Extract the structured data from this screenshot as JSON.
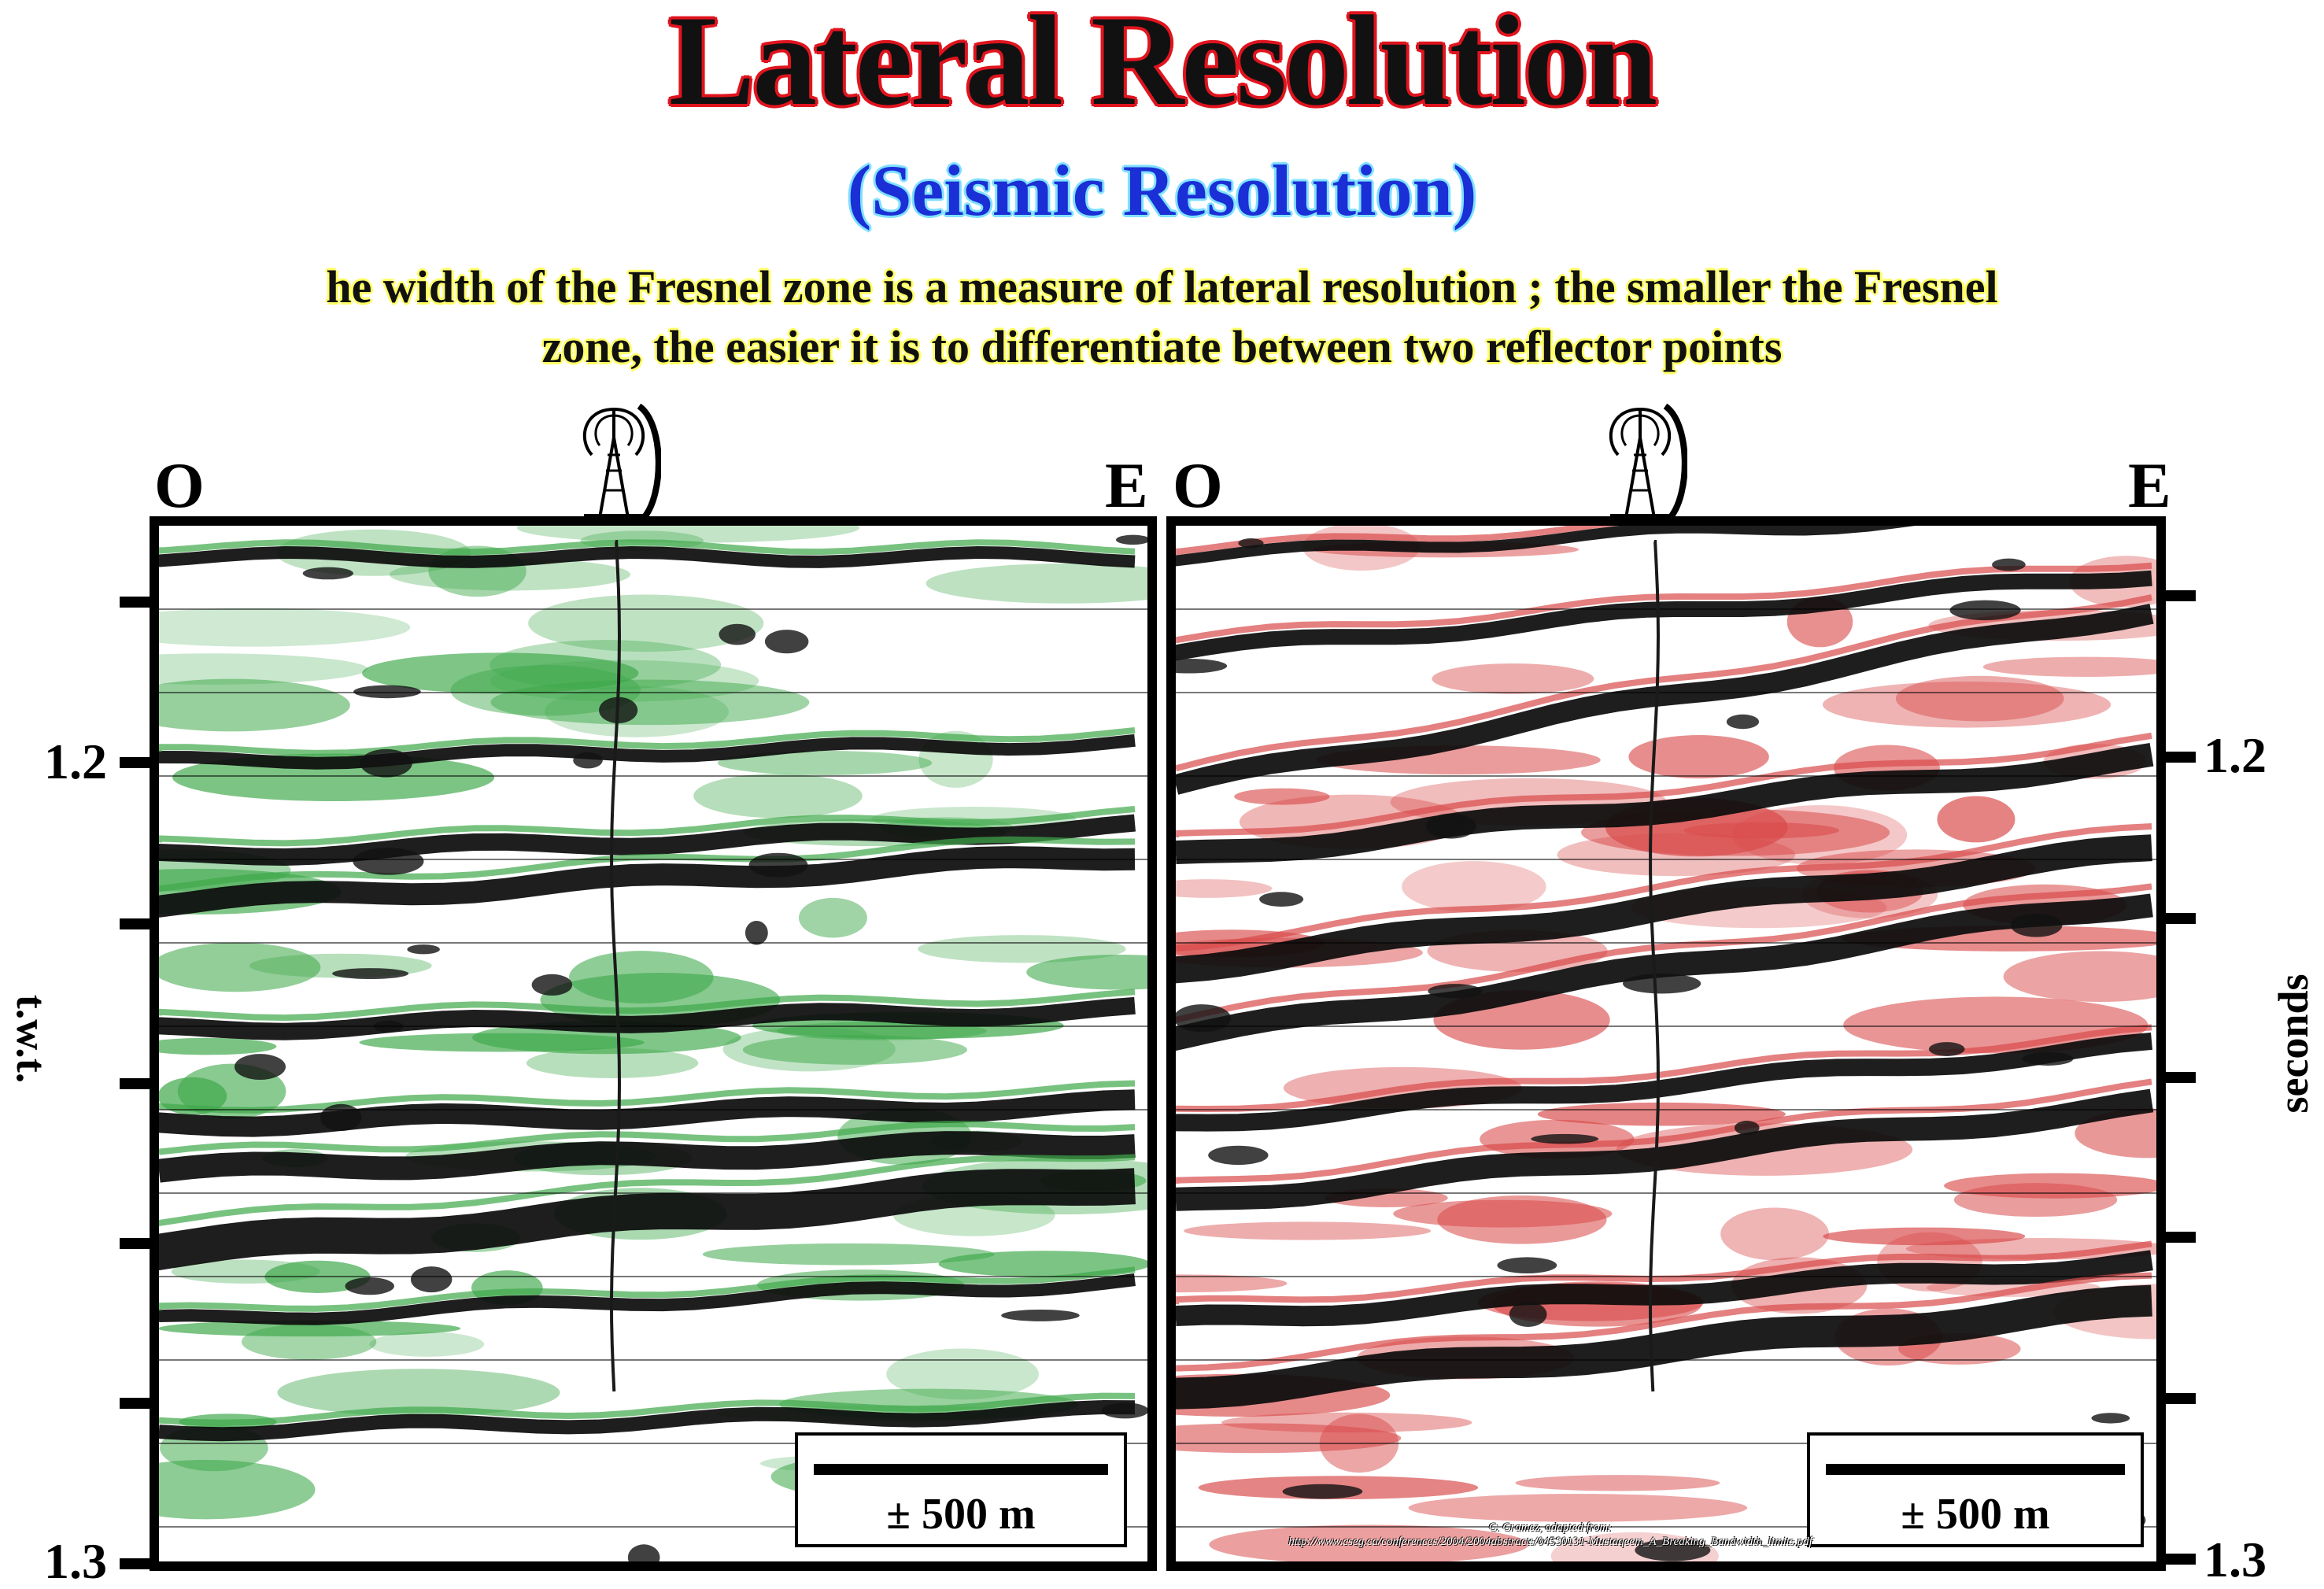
{
  "title": "Lateral Resolution",
  "subtitle": "(Seismic Resolution)",
  "description_line1": "he width of the Fresnel zone is a measure of lateral resolution ; the smaller the Fresnel",
  "description_line2": "zone, the easier it is to differentiate between two reflector points",
  "left_panel": {
    "west_label": "O",
    "east_label": "E",
    "axis_label": "t.w.t.",
    "tick_top": "1.2",
    "tick_bottom": "1.3",
    "scale_label": "± 500 m",
    "color": "#3ea84a"
  },
  "right_panel": {
    "west_label": "O",
    "east_label": "E",
    "axis_label": "seconds",
    "tick_top": "1.2",
    "tick_bottom": "1.3",
    "scale_label": "± 500 m",
    "color": "#d94a4a",
    "credit_line1": "C. Cramez, adapted from:",
    "credit_line2": "http://www.cseg.ca/conferences/2004/2004abstracts/045S0131-Mustaqeem_A_Breaking_Bandwidth_limits.pdf"
  },
  "icons": [
    "oil-well-icon",
    "oil-well-icon"
  ]
}
